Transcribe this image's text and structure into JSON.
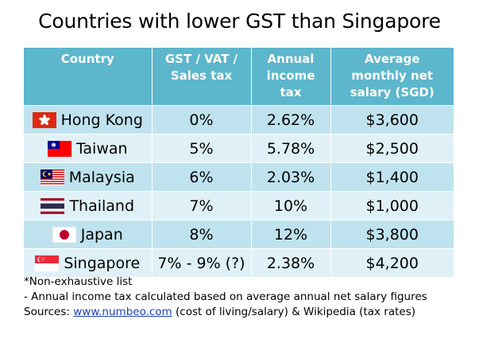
{
  "title": "Countries with lower GST than Singapore",
  "table": {
    "headers": [
      "Country",
      "GST / VAT /\nSales tax",
      "Annual\nincome tax",
      "Average\nmonthly net\nsalary (SGD)"
    ],
    "rows": [
      {
        "country": "Hong Kong",
        "flag": "hong-kong-flag-icon",
        "gst": "0%",
        "income_tax": "2.62%",
        "salary": "$3,600"
      },
      {
        "country": "Taiwan",
        "flag": "taiwan-flag-icon",
        "gst": "5%",
        "income_tax": "5.78%",
        "salary": "$2,500"
      },
      {
        "country": "Malaysia",
        "flag": "malaysia-flag-icon",
        "gst": "6%",
        "income_tax": "2.03%",
        "salary": "$1,400"
      },
      {
        "country": "Thailand",
        "flag": "thailand-flag-icon",
        "gst": "7%",
        "income_tax": "10%",
        "salary": "$1,000"
      },
      {
        "country": "Japan",
        "flag": "japan-flag-icon",
        "gst": "8%",
        "income_tax": "12%",
        "salary": "$3,800"
      },
      {
        "country": "Singapore",
        "flag": "singapore-flag-icon",
        "gst": "7% - 9% (?)",
        "income_tax": "2.38%",
        "salary": "$4,200"
      }
    ]
  },
  "notes": {
    "line1": "*Non-exhaustive list",
    "line2": "- Annual income tax calculated based on average annual net salary figures",
    "sources_prefix": "Sources: ",
    "sources_link": "www.numbeo.com",
    "sources_suffix": " (cost of living/salary) & Wikipedia (tax rates)"
  },
  "colors": {
    "header_bg": "#5cb6cc",
    "row_odd": "#bfe3ee",
    "row_even": "#dff1f7",
    "link": "#1f3fb5"
  }
}
